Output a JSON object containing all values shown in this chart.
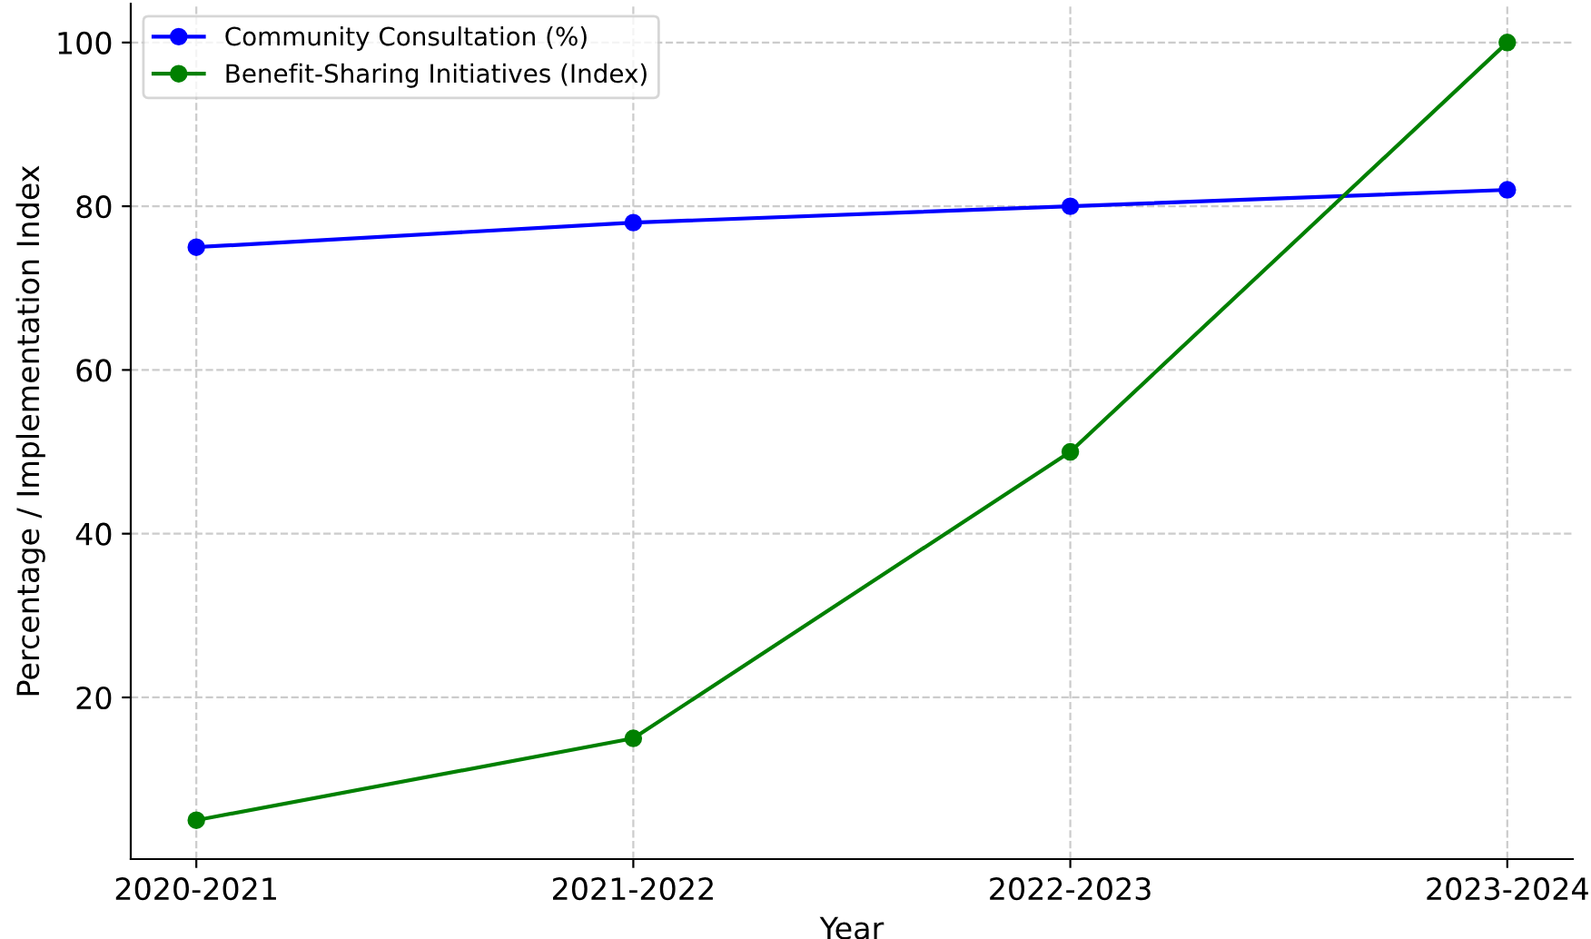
{
  "chart_data": {
    "type": "line",
    "xlabel": "Year",
    "ylabel": "Percentage / Implementation Index",
    "categories": [
      "2020-2021",
      "2021-2022",
      "2022-2023",
      "2023-2024"
    ],
    "series": [
      {
        "name": "Community Consultation (%)",
        "color": "#0000ff",
        "values": [
          75,
          78,
          80,
          82
        ]
      },
      {
        "name": "Benefit-Sharing Initiatives (Index)",
        "color": "#008000",
        "values": [
          5,
          15,
          50,
          100
        ]
      }
    ],
    "ylim": [
      0.25,
      104.75
    ],
    "yticks": [
      20,
      40,
      60,
      80,
      100
    ],
    "grid": true,
    "legend": "top left",
    "marker": "circle",
    "line_style": "solid"
  }
}
